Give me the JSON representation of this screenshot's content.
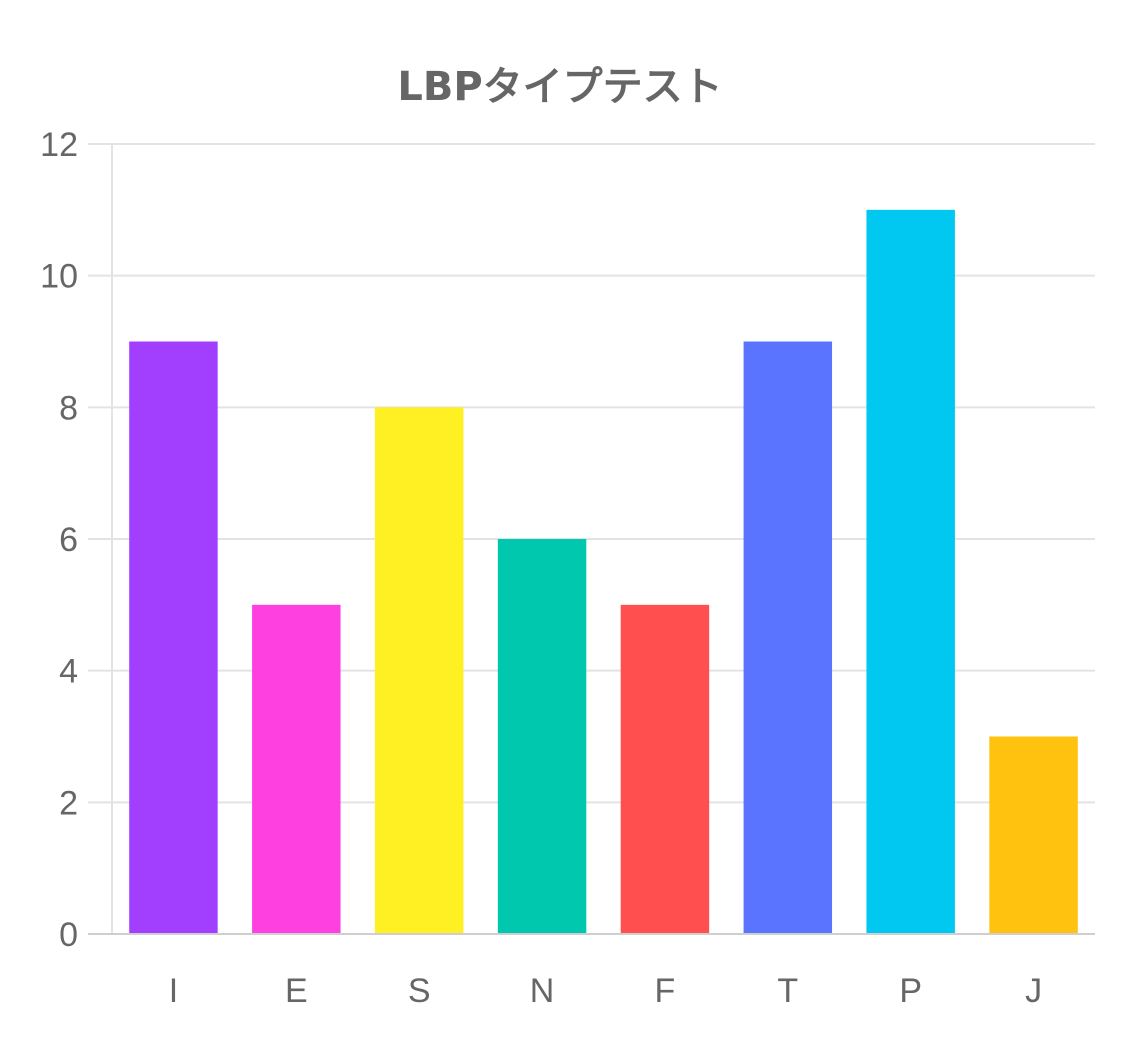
{
  "chart_data": {
    "type": "bar",
    "title": "LBPタイプテスト",
    "xlabel": "",
    "ylabel": "",
    "categories": [
      "I",
      "E",
      "S",
      "N",
      "F",
      "T",
      "P",
      "J"
    ],
    "values": [
      9,
      5,
      8,
      6,
      5,
      9,
      11,
      3
    ],
    "colors": [
      "#a23fff",
      "#ff40e0",
      "#fff024",
      "#00c8ae",
      "#ff4f4f",
      "#5a74ff",
      "#00c8f0",
      "#ffc20e"
    ],
    "ylim": [
      0,
      12
    ],
    "yticks": [
      "0",
      "2",
      "4",
      "6",
      "8",
      "10",
      "12"
    ],
    "grid": true,
    "legend": "none"
  }
}
